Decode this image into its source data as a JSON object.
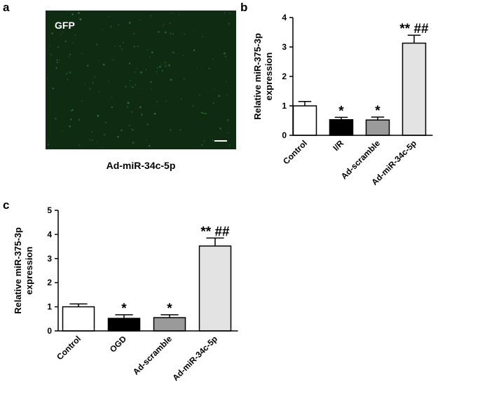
{
  "image_panel": {
    "panel_label": "a",
    "label": "GFP",
    "caption": "Ad-miR-34c-5p"
  },
  "chart_data": [
    {
      "type": "bar",
      "panel_label": "b",
      "ylabel": [
        "Relative miR-375-3p",
        "expression"
      ],
      "categories": [
        "Control",
        "I/R",
        "Ad-scramble",
        "Ad-miR-34c-5p"
      ],
      "values": [
        1.0,
        0.53,
        0.52,
        3.13
      ],
      "errors": [
        0.15,
        0.08,
        0.1,
        0.27
      ],
      "colors": [
        "#ffffff",
        "#000000",
        "#9a9a9a",
        "#e3e3e3"
      ],
      "annotations": [
        null,
        "*",
        "*",
        "** ##"
      ],
      "ylim": [
        0,
        4
      ],
      "yticks": [
        0,
        1,
        2,
        3,
        4
      ]
    },
    {
      "type": "bar",
      "panel_label": "c",
      "ylabel": [
        "Relative miR-375-3p",
        "expression"
      ],
      "categories": [
        "Control",
        "OGD",
        "Ad-scramble",
        "Ad-miR-34c-5p"
      ],
      "values": [
        1.0,
        0.52,
        0.55,
        3.52
      ],
      "errors": [
        0.12,
        0.15,
        0.12,
        0.33
      ],
      "colors": [
        "#ffffff",
        "#000000",
        "#9a9a9a",
        "#e3e3e3"
      ],
      "annotations": [
        null,
        "*",
        "*",
        "** ##"
      ],
      "ylim": [
        0,
        5
      ],
      "yticks": [
        0,
        1,
        2,
        3,
        4,
        5
      ]
    }
  ]
}
